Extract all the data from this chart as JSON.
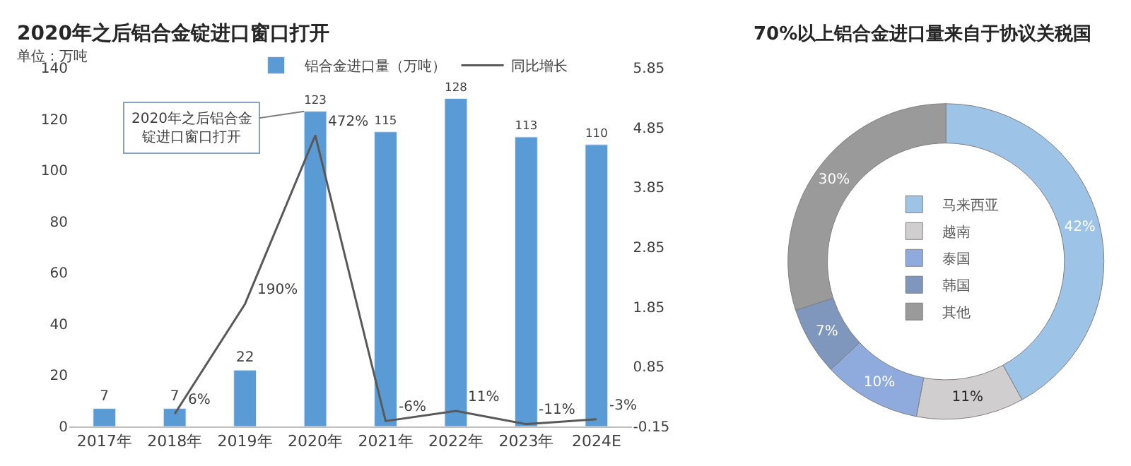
{
  "chart_data": [
    {
      "type": "bar",
      "title": "2020年之后铝合金锭进口窗口打开",
      "categories": [
        "2017年",
        "2018年",
        "2019年",
        "2020年",
        "2021年",
        "2022年",
        "2023年",
        "2024E"
      ],
      "series": [
        {
          "name": "铝合金进口量（万吨）",
          "type": "bar",
          "color": "#5b9bd5",
          "values": [
            7,
            7,
            22,
            123,
            115,
            128,
            113,
            110
          ],
          "value_labels": [
            "7",
            "7",
            "22",
            "123",
            "115",
            "128",
            "113",
            "110"
          ]
        },
        {
          "name": "同比增长",
          "type": "line",
          "axis": "y2",
          "color": "#595959",
          "values": [
            null,
            0.06,
            1.9,
            4.72,
            -0.06,
            0.11,
            -0.11,
            -0.03
          ],
          "value_labels": [
            null,
            "6%",
            "190%",
            "472%",
            "-6%",
            "11%",
            "-11%",
            "-3%"
          ]
        }
      ],
      "ylim": [
        0,
        140
      ],
      "yticks": [
        0,
        20,
        40,
        60,
        80,
        100,
        120,
        140
      ],
      "y2lim": [
        -0.15,
        5.85
      ],
      "y2ticks": [
        -0.15,
        0.85,
        1.85,
        2.85,
        3.85,
        4.85,
        5.85
      ],
      "annotations": [
        "单位：万吨",
        {
          "text": "2020年之后铝合金锭进口窗口打开",
          "x": "2020年",
          "y": 123
        }
      ],
      "legend": "top",
      "marker": "none",
      "line_style": "solid"
    },
    {
      "type": "donut",
      "title": "70%以上铝合金进口量来自于协议关税国",
      "categories": [
        "马来西亚",
        "越南",
        "泰国",
        "韩国",
        "其他"
      ],
      "values": [
        42,
        11,
        10,
        7,
        30
      ],
      "colors": [
        "#9dc3e6",
        "#d0cece",
        "#8faadc",
        "#7f96bd",
        "#9a9a9a"
      ],
      "value_labels": [
        "42%",
        "11%",
        "10%",
        "7%",
        "30%"
      ],
      "legend": "center"
    }
  ]
}
